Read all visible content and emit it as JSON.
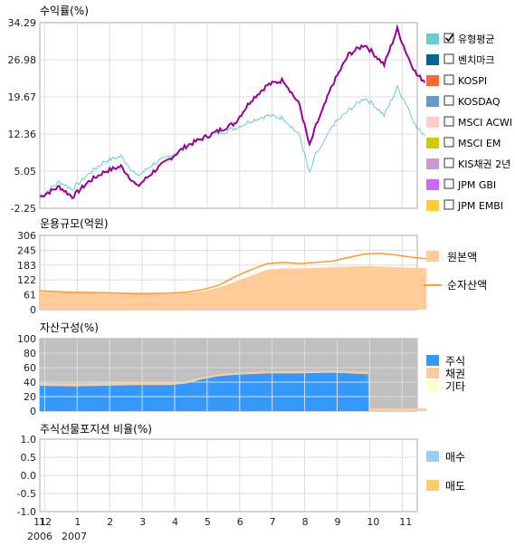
{
  "chart_data": [
    {
      "type": "line",
      "title": "수익률(%)",
      "yticks": [
        "34.29",
        "26.98",
        "19.67",
        "12.36",
        "5.05",
        "-2.25"
      ],
      "ylim": [
        -2.25,
        34.29
      ],
      "grid": true,
      "legend": [
        {
          "name": "유형평균",
          "color": "#66CCCC",
          "checked": true
        },
        {
          "name": "벤치마크",
          "color": "#006699",
          "checked": false
        },
        {
          "name": "KOSPI",
          "color": "#FF6633",
          "checked": false
        },
        {
          "name": "KOSDAQ",
          "color": "#6699CC",
          "checked": false
        },
        {
          "name": "MSCI ACWI",
          "color": "#FFCCCC",
          "checked": false
        },
        {
          "name": "MSCI EM",
          "color": "#CCCC00",
          "checked": false
        },
        {
          "name": "KIS채권 2년",
          "color": "#CC99CC",
          "checked": false
        },
        {
          "name": "JPM GBI",
          "color": "#CC66FF",
          "checked": false
        },
        {
          "name": "JPM EMBI",
          "color": "#FFCC33",
          "checked": false
        }
      ],
      "series": [
        {
          "color": "#990099",
          "x": [
            0,
            0.3,
            0.6,
            1.0,
            1.5,
            2.0,
            2.5,
            3.0,
            3.5,
            4.0,
            4.5,
            5.0,
            5.5,
            6.0,
            6.5,
            7.0,
            7.5,
            8.0,
            8.3,
            8.5,
            8.7,
            9.0,
            9.5,
            10.0,
            10.3,
            10.6,
            11.0,
            11.3,
            11.6,
            11.9
          ],
          "y": [
            0.0,
            1.0,
            2.0,
            0.0,
            3.0,
            5.0,
            6.0,
            2.0,
            5.0,
            7.5,
            10.0,
            11.5,
            13.0,
            14.5,
            19.0,
            22.0,
            23.0,
            18.0,
            10.0,
            14.0,
            17.0,
            22.0,
            28.0,
            30.0,
            28.0,
            26.0,
            33.0,
            28.0,
            24.0,
            22.5
          ]
        },
        {
          "color": "#66CCCC",
          "x": [
            0,
            0.3,
            0.6,
            1.0,
            1.5,
            2.0,
            2.5,
            3.0,
            3.5,
            4.0,
            4.5,
            5.0,
            5.5,
            6.0,
            6.5,
            7.0,
            7.5,
            8.0,
            8.3,
            8.5,
            8.7,
            9.0,
            9.5,
            10.0,
            10.3,
            10.6,
            11.0,
            11.3,
            11.6,
            11.9
          ],
          "y": [
            0.0,
            1.5,
            3.0,
            1.5,
            4.5,
            7.0,
            8.0,
            4.0,
            6.5,
            8.0,
            10.0,
            11.5,
            12.5,
            13.5,
            15.0,
            16.0,
            15.5,
            12.0,
            4.5,
            8.5,
            10.0,
            14.0,
            17.0,
            19.5,
            18.0,
            16.0,
            21.5,
            18.0,
            13.5,
            12.0
          ]
        }
      ]
    },
    {
      "type": "area",
      "title": "운용규모(억원)",
      "yticks": [
        "306",
        "245",
        "183",
        "122",
        "61",
        "0"
      ],
      "ylim": [
        0,
        306
      ],
      "legend": [
        {
          "name": "원본액",
          "color": "#FFCC99"
        },
        {
          "name": "순자산액",
          "color": "#FF9933"
        }
      ],
      "series": [
        {
          "name": "원본액",
          "x": [
            0,
            1,
            2,
            3,
            4,
            4.5,
            5,
            5.5,
            6,
            6.5,
            7,
            7.5,
            8,
            9,
            10,
            11,
            11.9
          ],
          "y": [
            75,
            70,
            68,
            65,
            65,
            68,
            75,
            90,
            115,
            140,
            165,
            170,
            170,
            175,
            180,
            175,
            170
          ]
        },
        {
          "name": "순자산액",
          "x": [
            0,
            1,
            2,
            3,
            4,
            4.5,
            5,
            5.5,
            6,
            6.5,
            7,
            7.5,
            8,
            9,
            10,
            10.5,
            11,
            11.5,
            11.9
          ],
          "y": [
            78,
            72,
            70,
            66,
            68,
            72,
            82,
            100,
            135,
            165,
            190,
            195,
            190,
            200,
            230,
            232,
            225,
            215,
            210
          ]
        }
      ]
    },
    {
      "type": "area",
      "title": "자산구성(%)",
      "yticks": [
        "100",
        "80",
        "60",
        "40",
        "20",
        "0"
      ],
      "ylim": [
        0,
        100
      ],
      "legend": [
        {
          "name": "주식",
          "color": "#3399FF"
        },
        {
          "name": "채권",
          "color": "#FFCC99"
        },
        {
          "name": "기타",
          "color": "#FFFFCC"
        }
      ],
      "other_color": "#C0C0C0",
      "series": [
        {
          "name": "주식",
          "x": [
            0,
            1,
            2,
            3,
            4,
            4.5,
            5,
            5.5,
            6,
            7,
            8,
            9,
            10.1,
            10.12,
            11.9
          ],
          "y": [
            35,
            34,
            35,
            36,
            36,
            38,
            44,
            48,
            50,
            52,
            52,
            53,
            51,
            0,
            0
          ]
        },
        {
          "name": "채권",
          "x": [
            0,
            1,
            2,
            3,
            4,
            4.5,
            5,
            5.5,
            6,
            7,
            8,
            9,
            10.1,
            10.12,
            11.9
          ],
          "y": [
            4,
            4,
            4,
            4,
            4,
            3,
            3,
            3,
            3,
            3,
            3,
            3,
            3,
            4,
            4
          ]
        }
      ]
    },
    {
      "type": "bar",
      "title": "주식선물포지션 비율(%)",
      "yticks": [
        "1.0",
        "0.5",
        "0.0",
        "-0.5",
        "-1.0"
      ],
      "ylim": [
        -1.0,
        1.0
      ],
      "legend": [
        {
          "name": "매수",
          "color": "#99CCFF"
        },
        {
          "name": "매도",
          "color": "#FFCC66"
        }
      ],
      "values": []
    }
  ],
  "xaxis": {
    "month_labels": [
      "12",
      "1",
      "2",
      "3",
      "4",
      "5",
      "6",
      "7",
      "8",
      "9",
      "10",
      "11"
    ],
    "start_prefix": "11",
    "year_labels": [
      "2006",
      "2007"
    ]
  }
}
